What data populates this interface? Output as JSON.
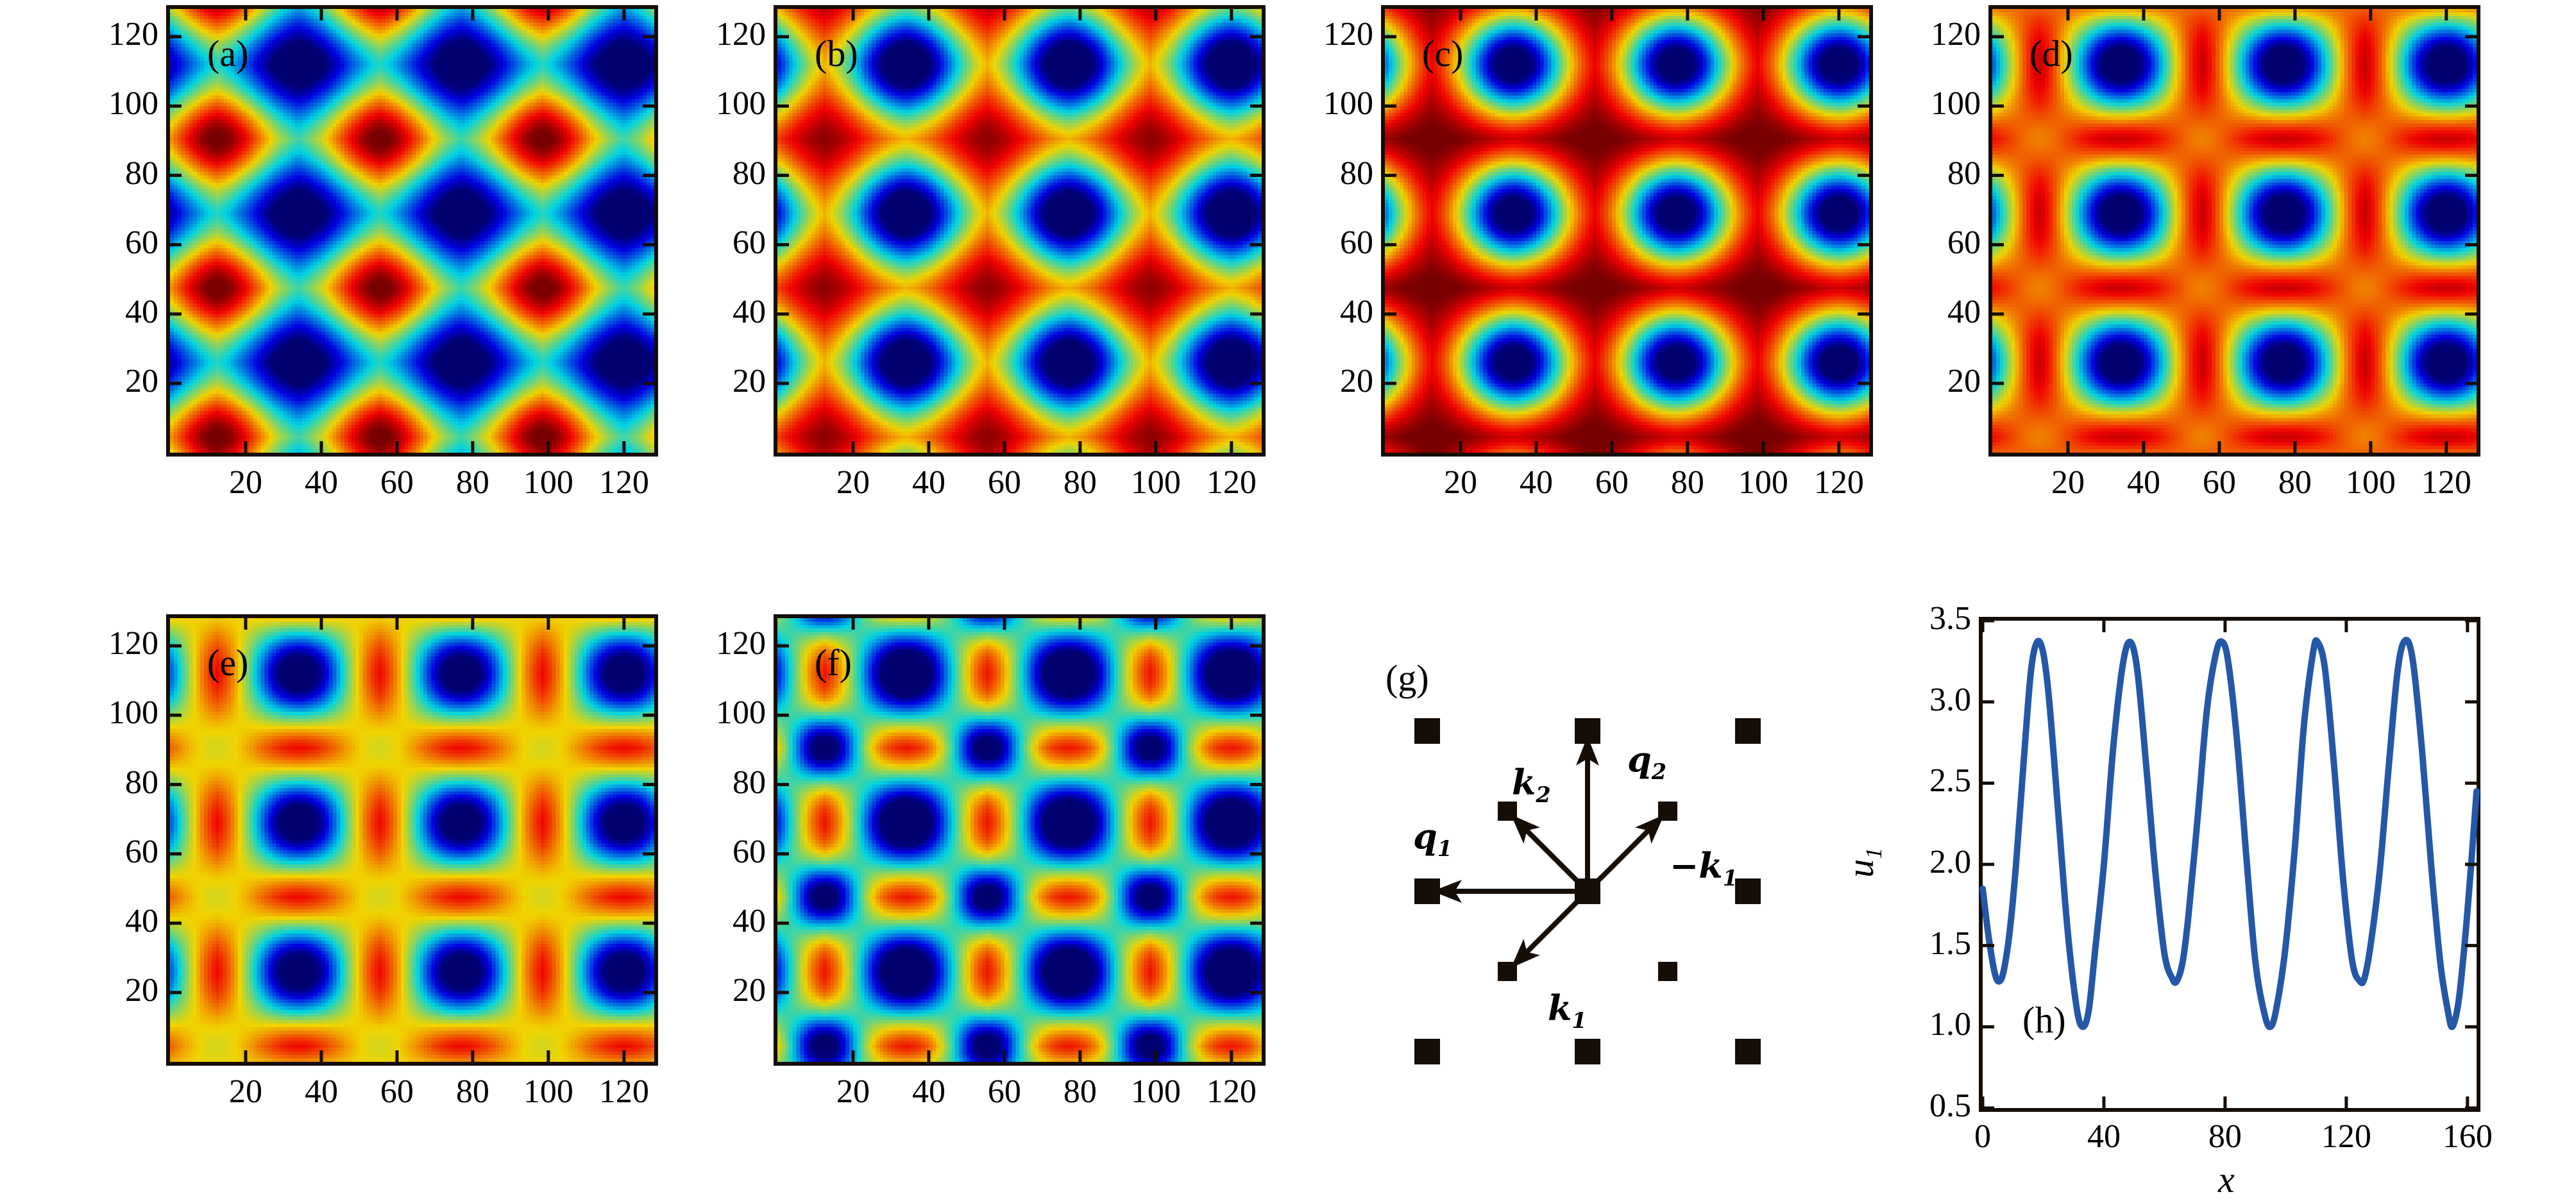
{
  "figure": {
    "background": "#ffffff",
    "colormap": "jet",
    "curve_color": "#2457a7",
    "axis_color": "#150d06",
    "panels": {
      "a": {
        "label": "(a)"
      },
      "b": {
        "label": "(b)"
      },
      "c": {
        "label": "(c)"
      },
      "d": {
        "label": "(d)"
      },
      "e": {
        "label": "(e)"
      },
      "f": {
        "label": "(f)"
      },
      "g": {
        "label": "(g)"
      },
      "h": {
        "label": "(h)"
      }
    }
  },
  "chart_data": [
    {
      "panel": "a",
      "type": "heatmap",
      "colormap": "jet",
      "grid_resolution": 128,
      "xlim": [
        0,
        128
      ],
      "ylim": [
        0,
        128
      ],
      "xticks": [
        20,
        40,
        60,
        80,
        100,
        120
      ],
      "yticks": [
        20,
        40,
        60,
        80,
        100,
        120
      ],
      "lattice": {
        "constant": 43,
        "vertex_origin": [
          34,
          26
        ],
        "center_origin": [
          12.5,
          4.5
        ],
        "edge_x_origin": [
          12.5,
          26
        ],
        "edge_y_origin": [
          34,
          4.5
        ]
      },
      "field": {
        "background": -0.1,
        "vertex": {
          "amp": -1.15,
          "sx": 12.5,
          "sy": 12
        },
        "center": {
          "amp": 1.2,
          "sx": 11.5,
          "sy": 11
        }
      },
      "description": "square superlattice: deep-blue minima spots with dark-red maxima spots at cell centers on a green-teal background"
    },
    {
      "panel": "b",
      "type": "heatmap",
      "colormap": "jet",
      "grid_resolution": 128,
      "xlim": [
        0,
        128
      ],
      "ylim": [
        0,
        128
      ],
      "xticks": [
        20,
        40,
        60,
        80,
        100,
        120
      ],
      "yticks": [
        20,
        40,
        60,
        80,
        100,
        120
      ],
      "lattice": {
        "constant": 43,
        "vertex_origin": [
          34,
          26
        ],
        "center_origin": [
          12.5,
          4.5
        ],
        "edge_x_origin": [
          12.5,
          26
        ],
        "edge_y_origin": [
          34,
          4.5
        ]
      },
      "field": {
        "background": 0.45,
        "vertex": {
          "amp": -1.8,
          "sx": 11,
          "sy": 11
        },
        "center": {
          "amp": 0.55,
          "sx": 13,
          "sy": 13
        }
      },
      "description": "blue ringed spots on red background with diffuse dark-red maxima at cell centers"
    },
    {
      "panel": "c",
      "type": "heatmap",
      "colormap": "jet",
      "grid_resolution": 128,
      "xlim": [
        0,
        128
      ],
      "ylim": [
        0,
        128
      ],
      "xticks": [
        20,
        40,
        60,
        80,
        100,
        120
      ],
      "yticks": [
        20,
        40,
        60,
        80,
        100,
        120
      ],
      "lattice": {
        "constant": 43,
        "vertex_origin": [
          34,
          26
        ],
        "center_origin": [
          12.5,
          4.5
        ],
        "edge_x_origin": [
          12.5,
          26
        ],
        "edge_y_origin": [
          34,
          4.5
        ]
      },
      "field": {
        "background": 0.85,
        "vertex": {
          "amp": -2.1,
          "sx": 10,
          "sy": 10
        },
        "center": {
          "amp": 0.18,
          "sx": 14,
          "sy": 14
        },
        "edge_x": {
          "amp": 0.05,
          "sx": 5,
          "sy": 9
        },
        "edge_y": {
          "amp": 0.12,
          "sx": 12,
          "sy": 4.5
        }
      },
      "description": "blue spots with yellow rings on a nearly uniform dark-red background"
    },
    {
      "panel": "d",
      "type": "heatmap",
      "colormap": "jet",
      "grid_resolution": 128,
      "xlim": [
        0,
        128
      ],
      "ylim": [
        0,
        128
      ],
      "xticks": [
        20,
        40,
        60,
        80,
        100,
        120
      ],
      "yticks": [
        20,
        40,
        60,
        80,
        100,
        120
      ],
      "lattice": {
        "constant": 43,
        "vertex_origin": [
          34,
          26
        ],
        "center_origin": [
          12.5,
          4.5
        ],
        "edge_x_origin": [
          12.5,
          26
        ],
        "edge_y_origin": [
          34,
          4.5
        ]
      },
      "field": {
        "background": 0.6,
        "vertex": {
          "amp": -1.85,
          "sx": 9.5,
          "sy": 9.5
        },
        "center": {
          "amp": -0.22,
          "sx": 6.5,
          "sy": 6.5
        },
        "edge_x": {
          "amp": 0.38,
          "sx": 5.5,
          "sy": 10
        },
        "edge_y": {
          "amp": 0.38,
          "sx": 10,
          "sy": 5.5
        }
      },
      "description": "blue spots on bright red background with dark-red dashes between spots and faint orange dots at cell centers"
    },
    {
      "panel": "e",
      "type": "heatmap",
      "colormap": "jet",
      "grid_resolution": 128,
      "xlim": [
        0,
        128
      ],
      "ylim": [
        0,
        128
      ],
      "xticks": [
        20,
        40,
        60,
        80,
        100,
        120
      ],
      "yticks": [
        20,
        40,
        60,
        80,
        100,
        120
      ],
      "lattice": {
        "constant": 43,
        "vertex_origin": [
          34,
          26
        ],
        "center_origin": [
          12.5,
          4.5
        ],
        "edge_x_origin": [
          12.5,
          26
        ],
        "edge_y_origin": [
          34,
          4.5
        ]
      },
      "field": {
        "background": 0.55,
        "vertex": {
          "amp": -1.8,
          "sx": 10.5,
          "sy": 10.5
        },
        "center": {
          "amp": -0.38,
          "sx": 8.5,
          "sy": 8.5
        },
        "edge_x": {
          "amp": 0.42,
          "sx": 8,
          "sy": 9
        },
        "edge_y": {
          "amp": 0.42,
          "sx": 9,
          "sy": 8
        }
      },
      "description": "checkerboard of blue spots and yellow-green spots with dark-red maxima at edge midpoints"
    },
    {
      "panel": "f",
      "type": "heatmap",
      "colormap": "jet",
      "grid_resolution": 128,
      "xlim": [
        0,
        128
      ],
      "ylim": [
        0,
        128
      ],
      "xticks": [
        20,
        40,
        60,
        80,
        100,
        120
      ],
      "yticks": [
        20,
        40,
        60,
        80,
        100,
        120
      ],
      "lattice": {
        "constant": 43,
        "vertex_origin": [
          34,
          26
        ],
        "center_origin": [
          12.5,
          4.5
        ],
        "edge_x_origin": [
          12.5,
          26
        ],
        "edge_y_origin": [
          34,
          4.5
        ]
      },
      "field": {
        "background": 0.5,
        "vertex": {
          "amp": -1.9,
          "sx": 10.5,
          "sy": 10.5
        },
        "center": {
          "amp": -1.65,
          "sx": 7,
          "sy": 7
        },
        "edge_x": {
          "amp": 0.45,
          "sx": 7.5,
          "sy": 8.5
        },
        "edge_y": {
          "amp": 0.45,
          "sx": 8.5,
          "sy": 7.5
        }
      },
      "description": "checkerboard of large and small blue spots with dark-red maxima at edge midpoints"
    },
    {
      "panel": "g",
      "type": "scatter",
      "marker": "square",
      "marker_color": "#150d06",
      "description": "wave-vector (Fourier mode) diagram of the square superlattice",
      "big_squares": [
        [
          -1,
          1
        ],
        [
          0,
          1
        ],
        [
          1,
          1
        ],
        [
          -1,
          0
        ],
        [
          0,
          0
        ],
        [
          1,
          0
        ],
        [
          -1,
          -1
        ],
        [
          0,
          -1
        ],
        [
          1,
          -1
        ]
      ],
      "small_squares": [
        [
          -0.5,
          0.5
        ],
        [
          0.5,
          0.5
        ],
        [
          -0.5,
          -0.5
        ],
        [
          0.5,
          -0.5
        ]
      ],
      "vectors": [
        {
          "name": "q1",
          "label": {
            "neg": false,
            "base": "q",
            "sub": "1"
          },
          "to": [
            -1,
            0
          ],
          "label_offset": [
            -272,
            -118
          ]
        },
        {
          "name": "q2",
          "label": {
            "neg": false,
            "base": "q",
            "sub": "2"
          },
          "to": [
            0,
            1
          ],
          "label_offset": [
            62,
            -238
          ]
        },
        {
          "name": "k2",
          "label": {
            "neg": false,
            "base": "k",
            "sub": "2"
          },
          "to": [
            -0.5,
            0.5
          ],
          "label_offset": [
            -118,
            -202
          ]
        },
        {
          "name": "minus-k1",
          "label": {
            "neg": true,
            "base": "k",
            "sub": "1"
          },
          "to": [
            0.5,
            0.5
          ],
          "label_offset": [
            128,
            -72
          ]
        },
        {
          "name": "k1",
          "label": {
            "neg": false,
            "base": "k",
            "sub": "1"
          },
          "to": [
            -0.5,
            -0.5
          ],
          "label_offset": [
            -62,
            150
          ]
        }
      ]
    },
    {
      "panel": "h",
      "type": "line",
      "line_color": "#2457a7",
      "line_width": 10,
      "xlabel": {
        "neg": false,
        "base": "x",
        "sub": ""
      },
      "ylabel": {
        "neg": false,
        "base": "u",
        "sub": "1"
      },
      "xlim": [
        0,
        163
      ],
      "ylim": [
        0.5,
        3.5
      ],
      "xticks": [
        0,
        40,
        80,
        120,
        160
      ],
      "yticks": [
        "0.5",
        "1.0",
        "1.5",
        "2.0",
        "2.5",
        "3.0",
        "3.5"
      ],
      "x": [
        0,
        2,
        4,
        5.5,
        7,
        9,
        11,
        14,
        16,
        18,
        20,
        22,
        25,
        28,
        31,
        33,
        35,
        37,
        40,
        43,
        46,
        48.5,
        51,
        54,
        57,
        60,
        62.5,
        64,
        66,
        68,
        71,
        74,
        77,
        79,
        81,
        84,
        87,
        90,
        93,
        95,
        97,
        100,
        103,
        106,
        109,
        110.5,
        113,
        116,
        119,
        122,
        124.5,
        126,
        128,
        131,
        134,
        137,
        139.5,
        142,
        145,
        148,
        151,
        153.5,
        155,
        157,
        159,
        161,
        163
      ],
      "y": [
        1.85,
        1.55,
        1.33,
        1.28,
        1.35,
        1.6,
        2.0,
        2.75,
        3.2,
        3.37,
        3.3,
        3.0,
        2.3,
        1.6,
        1.12,
        1.0,
        1.1,
        1.45,
        2.0,
        2.7,
        3.2,
        3.37,
        3.2,
        2.6,
        1.95,
        1.45,
        1.3,
        1.28,
        1.4,
        1.7,
        2.3,
        2.95,
        3.3,
        3.37,
        3.25,
        2.75,
        2.05,
        1.4,
        1.08,
        1.0,
        1.12,
        1.5,
        2.1,
        2.85,
        3.3,
        3.37,
        3.2,
        2.6,
        1.9,
        1.4,
        1.28,
        1.3,
        1.5,
        1.95,
        2.6,
        3.2,
        3.38,
        3.25,
        2.7,
        2.0,
        1.4,
        1.1,
        1.0,
        1.15,
        1.5,
        1.95,
        2.45
      ],
      "description": "profile u1 along x: oscillation of period ~30 with maxima ~3.4 and alternating minima ~1.3 / ~1.0"
    }
  ]
}
